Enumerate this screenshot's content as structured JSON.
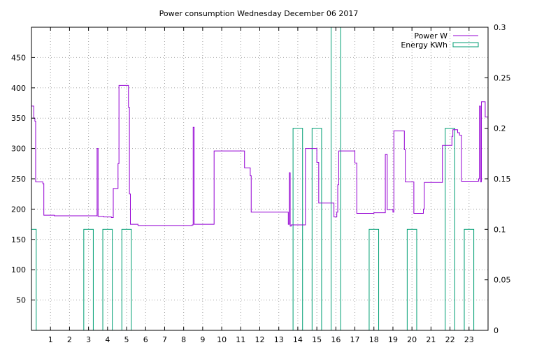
{
  "chart_data": {
    "type": "line",
    "title": "Power consumption Wednesday December 06 2017",
    "xlim": [
      0,
      24
    ],
    "ylim": [
      0,
      500
    ],
    "y2lim": [
      0,
      0.3
    ],
    "x_ticks": [
      1,
      2,
      3,
      4,
      5,
      6,
      7,
      8,
      9,
      10,
      11,
      12,
      13,
      14,
      15,
      16,
      17,
      18,
      19,
      20,
      21,
      22,
      23
    ],
    "y_ticks": [
      50,
      100,
      150,
      200,
      250,
      300,
      350,
      400,
      450
    ],
    "y2_ticks": [
      0,
      0.05,
      0.1,
      0.15,
      0.2,
      0.25,
      0.3
    ],
    "y2_tick_labels": [
      "0",
      "0.05",
      "0.1",
      "0.15",
      "0.2",
      "0.25",
      "0.3"
    ],
    "grid": true,
    "legend_position": "top-right",
    "colors": {
      "power": "#9400d3",
      "energy": "#009e73",
      "grid": "#a0a0a0"
    },
    "series": [
      {
        "name": "Power W",
        "axis": "y",
        "style": "steps",
        "points": [
          [
            0.0,
            370
          ],
          [
            0.12,
            350
          ],
          [
            0.18,
            345
          ],
          [
            0.22,
            245
          ],
          [
            0.6,
            242
          ],
          [
            0.65,
            190
          ],
          [
            1.2,
            189
          ],
          [
            3.4,
            189
          ],
          [
            3.45,
            300
          ],
          [
            3.5,
            188
          ],
          [
            3.8,
            187
          ],
          [
            4.2,
            186
          ],
          [
            4.3,
            234
          ],
          [
            4.55,
            275
          ],
          [
            4.6,
            404
          ],
          [
            5.1,
            368
          ],
          [
            5.15,
            225
          ],
          [
            5.2,
            175
          ],
          [
            5.6,
            173
          ],
          [
            8.45,
            174
          ],
          [
            8.5,
            335
          ],
          [
            8.55,
            175
          ],
          [
            9.6,
            296
          ],
          [
            11.2,
            268
          ],
          [
            11.5,
            255
          ],
          [
            11.55,
            195
          ],
          [
            13.5,
            175
          ],
          [
            13.55,
            260
          ],
          [
            13.6,
            172
          ],
          [
            13.65,
            174
          ],
          [
            14.4,
            300
          ],
          [
            15.0,
            277
          ],
          [
            15.1,
            210
          ],
          [
            15.9,
            187
          ],
          [
            16.05,
            195
          ],
          [
            16.1,
            240
          ],
          [
            16.15,
            296
          ],
          [
            17.0,
            276
          ],
          [
            17.1,
            193
          ],
          [
            18.0,
            194
          ],
          [
            18.6,
            290
          ],
          [
            18.7,
            199
          ],
          [
            19.0,
            195
          ],
          [
            19.05,
            329
          ],
          [
            19.6,
            298
          ],
          [
            19.65,
            245
          ],
          [
            20.1,
            193
          ],
          [
            20.6,
            200
          ],
          [
            20.65,
            244
          ],
          [
            21.6,
            305
          ],
          [
            22.1,
            320
          ],
          [
            22.15,
            331
          ],
          [
            22.4,
            326
          ],
          [
            22.5,
            322
          ],
          [
            22.6,
            246
          ],
          [
            23.5,
            250
          ],
          [
            23.55,
            370
          ],
          [
            23.6,
            245
          ],
          [
            23.65,
            377
          ],
          [
            23.85,
            352
          ],
          [
            24.0,
            352
          ]
        ]
      },
      {
        "name": "Energy KWh",
        "axis": "y2",
        "style": "bars",
        "bar_width": 0.5,
        "points": [
          [
            0.0,
            0.1
          ],
          [
            1.0,
            0
          ],
          [
            2.0,
            0
          ],
          [
            3.0,
            0.1
          ],
          [
            4.0,
            0.1
          ],
          [
            5.0,
            0.1
          ],
          [
            6.0,
            0
          ],
          [
            7.0,
            0
          ],
          [
            8.0,
            0
          ],
          [
            9.0,
            0
          ],
          [
            10.0,
            0
          ],
          [
            11.0,
            0
          ],
          [
            12.0,
            0
          ],
          [
            13.0,
            0
          ],
          [
            14.0,
            0.2
          ],
          [
            15.0,
            0.2
          ],
          [
            16.0,
            0.3
          ],
          [
            17.0,
            0
          ],
          [
            18.0,
            0.1
          ],
          [
            19.0,
            0
          ],
          [
            20.0,
            0.1
          ],
          [
            21.0,
            0
          ],
          [
            22.0,
            0.2
          ],
          [
            23.0,
            0.1
          ]
        ]
      }
    ]
  }
}
